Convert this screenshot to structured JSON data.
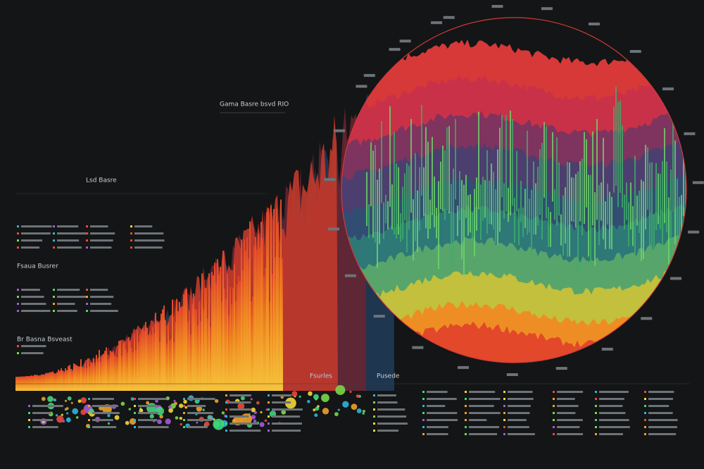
{
  "labels": {
    "main": "Gama Basre bsvd RIO",
    "upper_left": "Lsd Basre",
    "middle_left": "Fsaua Busrer",
    "lower_left": "Br Basna Bsveast",
    "bottom_center": "Fsurles",
    "bottom_right": "Pusede"
  }
}
